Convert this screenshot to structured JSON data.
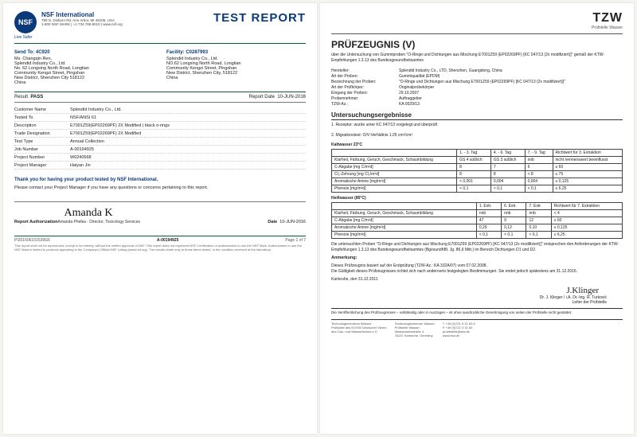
{
  "nsf": {
    "logo": "NSF",
    "safer": "Live Safer",
    "org": "NSF International",
    "addr1": "789 N. Dixboro Rd.  Ann Arbor, MI 48105, USA",
    "addr2": "1-800 NSF MARK | +1.734.769.8010 | www.nsf.org",
    "title": "TEST REPORT",
    "sendto_lbl": "Send To:  4C920",
    "sendto": "Ms. Changqin Ren,\nSplendid Industry Co., Ltd.\nNo. 62 Longxing North Road, Longtian\nCommunity Kengzi Street, Pingshan\nNew District, Shenzhen City 518122\nChina",
    "facility_lbl": "Facility:  C0287993",
    "facility": "Splendid Industry Co., Ltd.\nNO.62 Longxing North Road, Longtian\nCommunity Kengzi Street, Pingshan\nNew District, Shenzhen City, 518122\nChina",
    "result_lbl": "Result",
    "result": "PASS",
    "date_lbl": "Report Date",
    "date": "10-JUN-2016",
    "rows": [
      {
        "k": "Customer Name",
        "v": "Splendid Industry Co., Ltd."
      },
      {
        "k": "Tested To",
        "v": "NSF/ANSI 61"
      },
      {
        "k": "Description",
        "v": "E7001Z59(EP02269PF) 2X Modified | black o-rings"
      },
      {
        "k": "Trade Designation",
        "v": "E7001Z59(EP02269PF) 2X Modified"
      },
      {
        "k": "Test Type",
        "v": "Annual Collection"
      },
      {
        "k": "Job Number",
        "v": "A-00194925"
      },
      {
        "k": "Project Number",
        "v": "W0240568"
      },
      {
        "k": "Project Manager",
        "v": "Haiyan Jin"
      }
    ],
    "thanks": "Thank you for having your product tested by NSF International.",
    "contact": "Please contact your Project Manager if you have any questions or concerns pertaining to this report.",
    "auth_lbl": "Report Authorization",
    "sig": "Amanda K",
    "signame": "Amanda Phelka - Director, Toxicology Services",
    "sigdate_lbl": "Date",
    "sigdate": "10-JUN-2016",
    "foot_l": "PI201606101539G6",
    "foot_c": "A-00194925",
    "foot_r": "Page 1 of 7",
    "fine": "This report shall not be reproduced, except in its entirety, without the written approval of NSF. This report does not represent NSF Certification or authorization to use the NSF Mark. Authorization to use the NSF Mark is limited to products appearing in the Company's Official NSF Listing (www.nsf.org). The results relate only to those items tested, in the condition received at the laboratory."
  },
  "tzw": {
    "logo": "TZW",
    "sub": "Prüfstelle Wasser",
    "title": "PRÜFZEUGNIS (V)",
    "desc": "über die Untersuchung von Gummiproben \"O-Ringe und Dichtungen aus Mischung E7001Z59 (EP02269PF) [KC 047/13 (2x modifiziert)]\" gemäß der KTW-Empfehlungen 1.3.13 des Bundesgesundheitsamtes",
    "meta": [
      {
        "k": "Hersteller:",
        "v": "Splendid Industry Co., LTD, Shenzhen, Guangdong, China"
      },
      {
        "k": "Art der Proben:",
        "v": "Gummiqualität (EPDM)"
      },
      {
        "k": "Bezeichnung der Proben:",
        "v": "\"O-Ringe und Dichtungen aus Mischung E7001Z59 (EP02269PF) [KC 047/13 (2x modifiziert)]\""
      },
      {
        "k": "Art der Prüfkörper:",
        "v": "Originalprobekörper"
      },
      {
        "k": "Eingang der Proben:",
        "v": "29.10.2007"
      },
      {
        "k": "Probennehmer:",
        "v": "Auftraggeber"
      },
      {
        "k": "TZW-Az.:",
        "v": "KA  0029/13"
      }
    ],
    "sect": "Untersuchungsergebnisse",
    "sub1": "1.  Rezeptur:  wurde unter KC 047/13 vorgelegt und überprüft",
    "sub2": "2.  Migrationstest:  O/V-Verhältnis 1:25 cm²/cm³",
    "cold_lbl": "Kaltwasser 23°C",
    "cold_hdr": [
      "",
      "1. - 3. Tag",
      "4. - 6. Tag",
      "7. - 9. Tag",
      "Richtwert für 3. Extraktion"
    ],
    "cold_rows": [
      [
        "Klarheit, Färbung, Geruch, Geschmack, Schaumbildung",
        "GS 4 süßlich",
        "GS 3 süßlich",
        "nnb",
        "nicht nennenswert beeinflusst"
      ],
      [
        "C-Abgabe [mg C/m²d]",
        "8",
        "7",
        "6",
        "≤ 60"
      ],
      [
        "Cl₂-Zehrung [mg Cl₂/m²d]",
        "8",
        "8",
        "< 8",
        "≤ 75"
      ],
      [
        "Aromatische Amine [mg/m²d]",
        "< 0,001",
        "0,004",
        "0,004",
        "≤ 0,125"
      ],
      [
        "Phenole [mg/m²d]",
        "< 0,1",
        "< 0,1",
        "< 0,1",
        "≤ 6,25"
      ]
    ],
    "hot_lbl": "Heißwasser (85°C)",
    "hot_hdr": [
      "",
      "1. Extr.",
      "6. Extr.",
      "7. Extr.",
      "Richtwert für 7. Extraktion"
    ],
    "hot_rows": [
      [
        "Klarheit, Färbung, Geruch, Geschmack, Schaumbildung",
        "nnb",
        "nnb",
        "nnb",
        "< 4"
      ],
      [
        "C-Abgabe [mg C/m²d]",
        "47",
        "9",
        "12",
        "≤ 60"
      ],
      [
        "Aromatische Amine [mg/m²d]",
        "0,29",
        "0,12",
        "0,10",
        "≤ 0,125"
      ],
      [
        "Phenole [mg/m²d]",
        "< 0,1",
        "< 0,1",
        "< 0,1",
        "≤ 6,25"
      ]
    ],
    "note1": "Die untersuchten Proben \"O-Ringe und Dichtungen aus Mischung E7001Z59 (EP02269PF) [KC 047/13 (2x modifiziert)]\" entsprechen den Anforderungen der KTW-Empfehlungen 1.3.13 des Bundesgesundheitsamtes (BgesundhBl. Jg. 86,6 Mitt.) im Bereich Dichtungen D1 und D2.",
    "anm_lbl": "Anmerkung:",
    "anm": "Dieses Prüfzeugnis basiert auf der Erstprüfung (TZW-Az.: KA 332A/07) vom 07.02.2008.\nDie Gültigkeit dieses Prüfzeugnisses richtet sich nach andernorts festgelegten Bestimmungen. Sie endet jedoch spätestens am 31.12.2016.",
    "place": "Karlsruhe, den 31.12.2011",
    "sig": "J.Klinger",
    "signame": "Dr. J. Klinger / i.A. Dr.-Ing. R. Turković\nLeiter der Prüfstelle",
    "foot_note": "Die Veröffentlichung des Prüfzeugnisses – vollständig oder in Auszügen – ist ohne ausdrückliche Genehmigung von seiten der Prüfstelle nicht gestattet.",
    "foot_cols": [
      "Technologiezentrum Wasser\nPrüfstelle des DVGW Deutscher Verein\ndes Gas- und Wasserfaches e.V.",
      "Technologiezentrum Wasser\nPrüfstelle Wasser\nWasserwerkstraße 4\n76137 Karlsruhe, Germany",
      "T +49 (0)721 9 31 63-0\nF +49 (0)721 3 31 60\npruefstelle@tzw.de\nwww.tzw.de"
    ]
  }
}
